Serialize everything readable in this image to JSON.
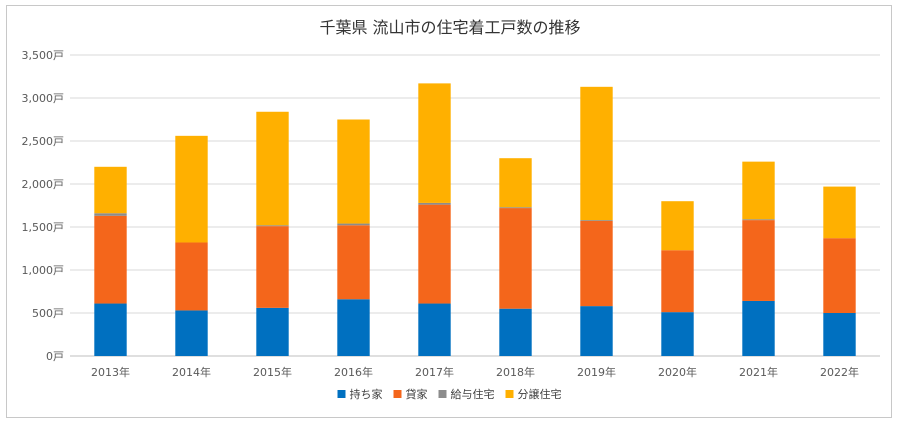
{
  "chart_data": {
    "type": "bar",
    "stacked": true,
    "title": "千葉県 流山市の住宅着工戸数の推移",
    "xlabel": "",
    "ylabel": "",
    "categories": [
      "2013年",
      "2014年",
      "2015年",
      "2016年",
      "2017年",
      "2018年",
      "2019年",
      "2020年",
      "2021年",
      "2022年"
    ],
    "series": [
      {
        "name": "持ち家",
        "color": "#0070c0",
        "values": [
          610,
          530,
          560,
          660,
          610,
          550,
          580,
          510,
          640,
          500
        ]
      },
      {
        "name": "貸家",
        "color": "#f4661b",
        "values": [
          1020,
          790,
          950,
          860,
          1150,
          1170,
          990,
          720,
          940,
          870
        ]
      },
      {
        "name": "給与住宅",
        "color": "#8c8c8c",
        "values": [
          30,
          0,
          10,
          20,
          20,
          10,
          10,
          0,
          10,
          0
        ]
      },
      {
        "name": "分譲住宅",
        "color": "#ffb000",
        "values": [
          540,
          1240,
          1320,
          1210,
          1390,
          570,
          1550,
          570,
          670,
          600
        ]
      }
    ],
    "ylim": [
      0,
      3500
    ],
    "yticks": [
      0,
      500,
      1000,
      1500,
      2000,
      2500,
      3000,
      3500
    ],
    "ytick_labels": [
      "0戸",
      "500戸",
      "1,000戸",
      "1,500戸",
      "2,000戸",
      "2,500戸",
      "3,000戸",
      "3,500戸"
    ],
    "grid": true,
    "legend_position": "bottom"
  }
}
